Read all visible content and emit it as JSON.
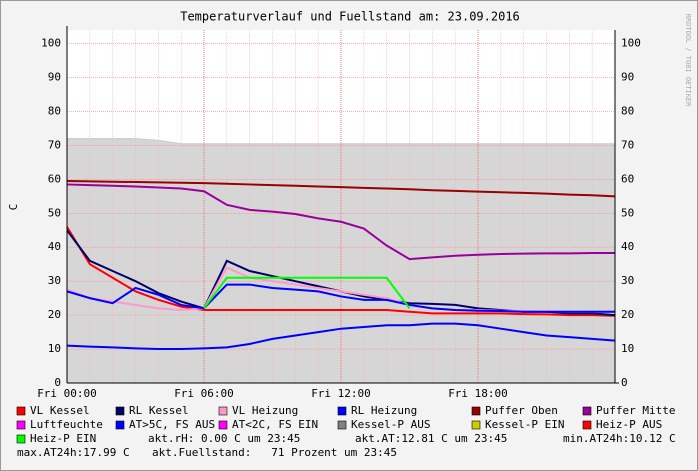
{
  "chart_data": {
    "type": "line",
    "title": "Temperaturverlauf und Fuellstand am: 23.09.2016",
    "ylabel": "C",
    "watermark": "RRDTOOL / TOBI OETIKER",
    "x": [
      0,
      1,
      2,
      3,
      4,
      5,
      6,
      7,
      8,
      9,
      10,
      11,
      12,
      13,
      14,
      15,
      16,
      17,
      18,
      19,
      20,
      21,
      22,
      23,
      24
    ],
    "xlim": [
      0,
      24
    ],
    "xticks": [
      {
        "value": 0,
        "label": "Fri 00:00"
      },
      {
        "value": 6,
        "label": "Fri 06:00"
      },
      {
        "value": 12,
        "label": "Fri 12:00"
      },
      {
        "value": 18,
        "label": "Fri 18:00"
      }
    ],
    "ylim": [
      0,
      104
    ],
    "yticks": [
      0,
      10,
      20,
      30,
      40,
      50,
      60,
      70,
      80,
      90,
      100
    ],
    "grid": true,
    "series": [
      {
        "name": "VL Kessel",
        "color": "#ff0000",
        "values": [
          46,
          35,
          31,
          27,
          24.5,
          22.5,
          21.5,
          21.5,
          21.5,
          21.5,
          21.5,
          21.5,
          21.5,
          21.5,
          21.5,
          21,
          20.5,
          20.5,
          20.5,
          20.5,
          20.3,
          20.2,
          20,
          20,
          19.8
        ]
      },
      {
        "name": "RL Kessel",
        "color": "#000066",
        "values": [
          45,
          36,
          33,
          30,
          26.5,
          24,
          22,
          36,
          33,
          31.5,
          30,
          28.5,
          27,
          25.5,
          24.5,
          23.5,
          23.3,
          23,
          22,
          21.5,
          21,
          21,
          20.5,
          20.5,
          20
        ]
      },
      {
        "name": "VL Heizung",
        "color": "#ff99cc",
        "values": [
          27.5,
          25,
          24,
          23,
          22,
          21.5,
          22,
          34,
          31,
          30,
          29,
          28,
          27,
          26,
          25,
          23,
          22,
          21.5,
          21.5,
          21.3,
          21.2,
          21.1,
          21,
          21,
          21
        ]
      },
      {
        "name": "RL Heizung",
        "color": "#0000ff",
        "values": [
          27,
          25,
          23.5,
          28,
          26,
          23,
          22,
          29,
          29,
          28,
          27.5,
          27,
          25.5,
          24.5,
          24.5,
          23,
          22,
          21.5,
          21.3,
          21.2,
          21,
          21,
          21,
          21,
          21
        ]
      },
      {
        "name": "Puffer Oben",
        "color": "#990000",
        "values": [
          59.5,
          59.4,
          59.3,
          59.2,
          59.1,
          59,
          58.9,
          58.7,
          58.5,
          58.3,
          58.1,
          57.9,
          57.7,
          57.5,
          57.3,
          57.1,
          56.8,
          56.6,
          56.4,
          56.2,
          56,
          55.8,
          55.5,
          55.3,
          55
        ]
      },
      {
        "name": "Puffer Mitte",
        "color": "#990099",
        "values": [
          58.5,
          58.3,
          58.1,
          57.9,
          57.6,
          57.3,
          56.5,
          52.5,
          51,
          50.5,
          49.8,
          48.5,
          47.5,
          45.5,
          40.5,
          36.5,
          37,
          37.5,
          37.8,
          38,
          38.1,
          38.2,
          38.2,
          38.3,
          38.3
        ]
      },
      {
        "name": "Luftfeuchte",
        "color": "#ff00ff",
        "values": [
          null,
          null,
          null,
          null,
          null,
          null,
          null,
          null,
          null,
          null,
          null,
          null,
          null,
          null,
          null,
          null,
          null,
          null,
          null,
          null,
          null,
          null,
          null,
          null,
          null
        ]
      },
      {
        "name": "AT>5C, FS AUS",
        "color": "#0000ff",
        "values": [
          11,
          10.7,
          10.5,
          10.2,
          10,
          10,
          10.2,
          10.5,
          11.5,
          13,
          14,
          15,
          16,
          16.5,
          17,
          17,
          17.5,
          17.5,
          17,
          16,
          15,
          14,
          13.5,
          13,
          12.5
        ]
      },
      {
        "name": "AT<2C, FS EIN",
        "color": "#ff00ff",
        "values": [
          null,
          null,
          null,
          null,
          null,
          null,
          null,
          null,
          null,
          null,
          null,
          null,
          null,
          null,
          null,
          null,
          null,
          null,
          null,
          null,
          null,
          null,
          null,
          null,
          null
        ]
      },
      {
        "name": "Kessel-P AUS",
        "color": "#808080",
        "area": true,
        "values": [
          72,
          72,
          72,
          72,
          71.5,
          70.5,
          70.5,
          70.5,
          70.5,
          70.5,
          70.5,
          70.5,
          70.5,
          70.5,
          70.5,
          70.5,
          70.5,
          70.5,
          70.5,
          70.5,
          70.5,
          70.5,
          70.5,
          70.5,
          70.5
        ]
      },
      {
        "name": "Kessel-P EIN",
        "color": "#cccc00",
        "values": [
          null,
          null,
          null,
          null,
          null,
          null,
          null,
          null,
          null,
          null,
          null,
          null,
          null,
          null,
          null,
          null,
          null,
          null,
          null,
          null,
          null,
          null,
          null,
          null,
          null
        ]
      },
      {
        "name": "Heiz-P AUS",
        "color": "#ff0000",
        "values": [
          null,
          null,
          null,
          null,
          null,
          null,
          null,
          null,
          null,
          null,
          null,
          null,
          null,
          null,
          null,
          null,
          null,
          null,
          null,
          null,
          null,
          null,
          null,
          null,
          null
        ]
      },
      {
        "name": "Heiz-P EIN",
        "color": "#00ff00",
        "values": [
          null,
          null,
          null,
          null,
          null,
          null,
          22,
          31,
          31,
          31,
          31,
          31,
          31,
          31,
          31,
          22,
          null,
          null,
          null,
          null,
          null,
          null,
          null,
          null,
          null
        ]
      }
    ],
    "notes": [
      "akt.rH: 0.00 C um 23:45",
      "akt.AT:12.81 C um 23:45",
      "min.AT24h:10.12 C",
      "max.AT24h:17.99 C",
      "akt.Fuellstand:   71 Prozent um 23:45"
    ]
  }
}
